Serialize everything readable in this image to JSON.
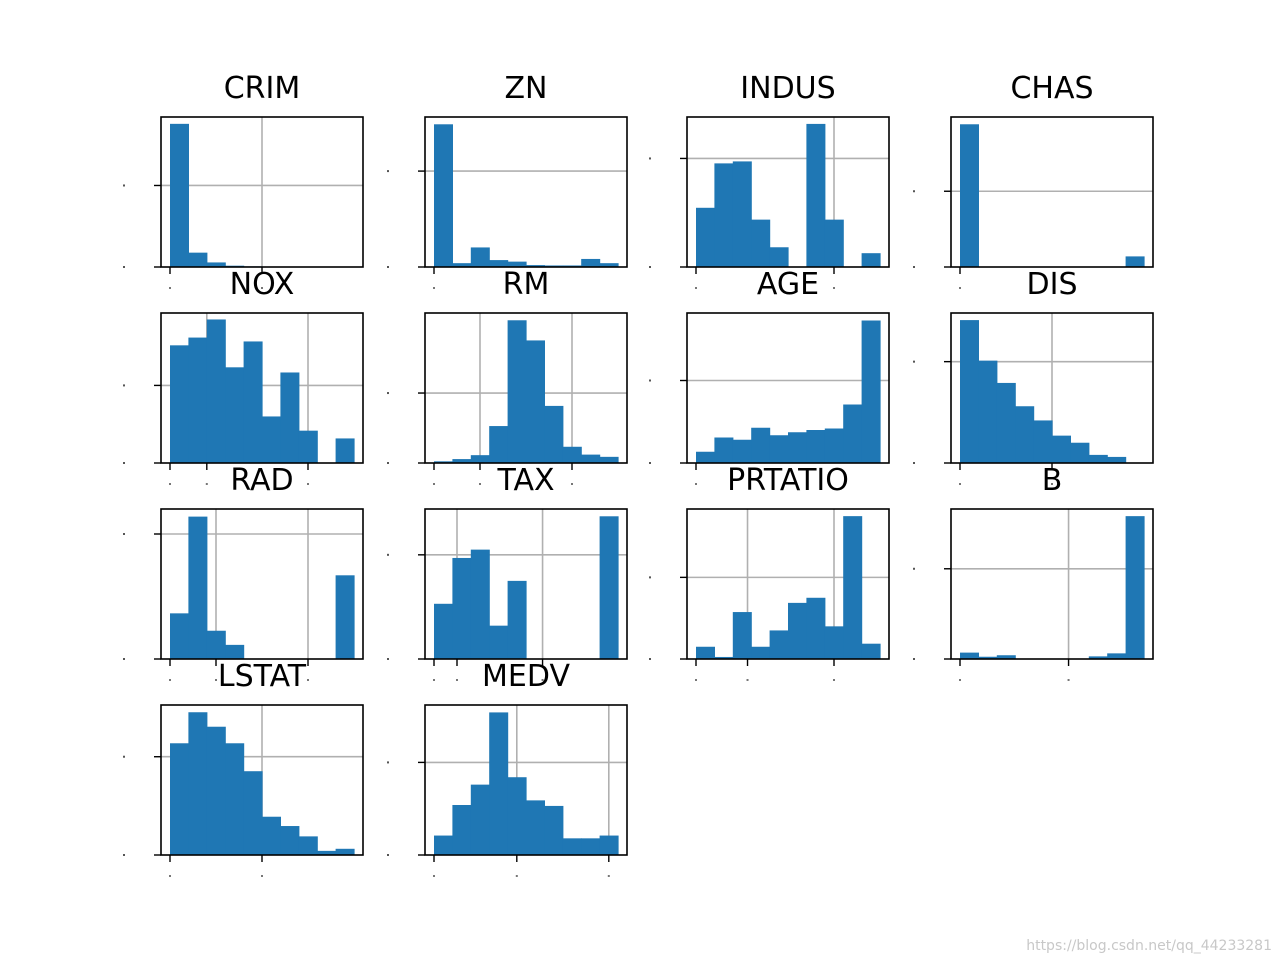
{
  "chart_data": [
    {
      "type": "bar",
      "title": "CRIM",
      "values": [
        439,
        44,
        14,
        4,
        2,
        1,
        1,
        0,
        0,
        1
      ],
      "ylim": [
        0,
        460
      ],
      "ytick": 250,
      "xticks": 3,
      "vlines": [
        0.5
      ],
      "colors": {
        "bar": "#1f77b4",
        "grid": "#b0b0b0"
      }
    },
    {
      "type": "bar",
      "title": "ZN",
      "values": [
        372,
        10,
        51,
        18,
        14,
        5,
        4,
        4,
        21,
        10
      ],
      "ylim": [
        0,
        391
      ],
      "ytick": 250,
      "xticks": 2,
      "vlines": [],
      "colors": {
        "bar": "#1f77b4",
        "grid": "#b0b0b0"
      }
    },
    {
      "type": "bar",
      "title": "INDUS",
      "values": [
        60,
        105,
        107,
        48,
        20,
        0,
        145,
        48,
        0,
        14
      ],
      "ylim": [
        0,
        152
      ],
      "ytick": 110,
      "xticks": 1,
      "vlines": [
        0.75
      ],
      "colors": {
        "bar": "#1f77b4",
        "grid": "#b0b0b0"
      }
    },
    {
      "type": "bar",
      "title": "CHAS",
      "values": [
        471,
        0,
        0,
        0,
        0,
        0,
        0,
        0,
        0,
        35
      ],
      "ylim": [
        0,
        495
      ],
      "ytick": 250,
      "xticks": 2,
      "vlines": [],
      "colors": {
        "bar": "#1f77b4",
        "grid": "#b0b0b0"
      }
    },
    {
      "type": "bar",
      "title": "NOX",
      "values": [
        91,
        97,
        111,
        74,
        94,
        36,
        70,
        25,
        0,
        19
      ],
      "ylim": [
        0,
        116
      ],
      "ytick": 60,
      "xticks": 2,
      "vlines": [
        0.2,
        0.75
      ],
      "colors": {
        "bar": "#1f77b4",
        "grid": "#b0b0b0"
      }
    },
    {
      "type": "bar",
      "title": "RM",
      "values": [
        3,
        7,
        14,
        66,
        255,
        219,
        102,
        29,
        15,
        11
      ],
      "ylim": [
        0,
        268
      ],
      "ytick": 125,
      "xticks": 2,
      "vlines": [
        0.25,
        0.75
      ],
      "colors": {
        "bar": "#1f77b4",
        "grid": "#b0b0b0"
      }
    },
    {
      "type": "bar",
      "title": "AGE",
      "values": [
        15,
        34,
        31,
        47,
        37,
        41,
        44,
        46,
        78,
        190
      ],
      "ylim": [
        0,
        200
      ],
      "ytick": 110,
      "xticks": 1,
      "vlines": [],
      "colors": {
        "bar": "#1f77b4",
        "grid": "#b0b0b0"
      }
    },
    {
      "type": "bar",
      "title": "DIS",
      "values": [
        141,
        101,
        79,
        56,
        42,
        27,
        20,
        8,
        6,
        0
      ],
      "ylim": [
        0,
        148
      ],
      "ytick": 100,
      "xticks": 2,
      "vlines": [
        0.5
      ],
      "colors": {
        "bar": "#1f77b4",
        "grid": "#b0b0b0"
      }
    },
    {
      "type": "bar",
      "title": "RAD",
      "values": [
        42,
        131,
        26,
        13,
        0,
        0,
        0,
        0,
        0,
        77
      ],
      "ylim": [
        0,
        138
      ],
      "ytick": 115,
      "xticks": 2,
      "vlines": [
        0.25,
        0.75
      ],
      "colors": {
        "bar": "#1f77b4",
        "grid": "#b0b0b0"
      }
    },
    {
      "type": "bar",
      "title": "TAX",
      "values": [
        53,
        97,
        105,
        32,
        75,
        0,
        0,
        0,
        0,
        137
      ],
      "ylim": [
        0,
        144
      ],
      "ytick": 100,
      "xticks": 2,
      "vlines": [
        0.125,
        0.59
      ],
      "colors": {
        "bar": "#1f77b4",
        "grid": "#b0b0b0"
      }
    },
    {
      "type": "bar",
      "title": "PRTATIO",
      "values": [
        12,
        2,
        46,
        12,
        28,
        55,
        60,
        32,
        140,
        15
      ],
      "ylim": [
        0,
        147
      ],
      "ytick": 80,
      "xticks": 2,
      "vlines": [
        0.28,
        0.75
      ],
      "colors": {
        "bar": "#1f77b4",
        "grid": "#b0b0b0"
      }
    },
    {
      "type": "bar",
      "title": "B",
      "values": [
        17,
        6,
        10,
        0,
        0,
        0,
        0,
        7,
        15,
        380
      ],
      "ylim": [
        0,
        399
      ],
      "ytick": 240,
      "xticks": 2,
      "vlines": [
        0.59
      ],
      "colors": {
        "bar": "#1f77b4",
        "grid": "#b0b0b0"
      }
    },
    {
      "type": "bar",
      "title": "LSTAT",
      "values": [
        108,
        138,
        124,
        108,
        81,
        37,
        28,
        18,
        4,
        6
      ],
      "ylim": [
        0,
        145
      ],
      "ytick": 95,
      "xticks": 2,
      "vlines": [
        0.5
      ],
      "colors": {
        "bar": "#1f77b4",
        "grid": "#b0b0b0"
      }
    },
    {
      "type": "bar",
      "title": "MEDV",
      "values": [
        21,
        54,
        76,
        154,
        84,
        59,
        53,
        18,
        18,
        21
      ],
      "ylim": [
        0,
        162
      ],
      "ytick": 100,
      "xticks": 2,
      "vlines": [
        0.45,
        0.95
      ],
      "colors": {
        "bar": "#1f77b4",
        "grid": "#b0b0b0"
      }
    }
  ],
  "watermark": "https://blog.csdn.net/qq_44233281"
}
